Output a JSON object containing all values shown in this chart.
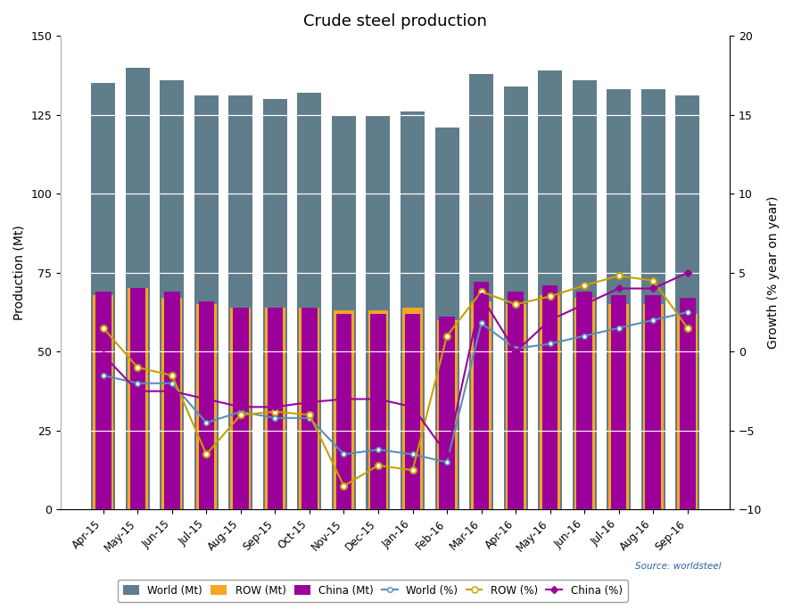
{
  "title": "Crude steel production",
  "categories": [
    "Apr-15",
    "May-15",
    "Jun-15",
    "Jul-15",
    "Aug-15",
    "Sep-15",
    "Oct-15",
    "Nov-15",
    "Dec-15",
    "Jan-16",
    "Feb-16",
    "Mar-16",
    "Apr-16",
    "May-16",
    "Jun-16",
    "Jul-16",
    "Aug-16",
    "Sep-16"
  ],
  "world_mt": [
    135,
    140,
    136,
    131,
    131,
    130,
    132,
    125,
    125,
    126,
    121,
    138,
    134,
    139,
    136,
    133,
    133,
    131
  ],
  "row_mt": [
    68,
    70,
    67,
    65,
    64,
    64,
    64,
    63,
    63,
    64,
    60,
    66,
    65,
    68,
    67,
    65,
    65,
    62
  ],
  "china_mt": [
    69,
    70,
    69,
    66,
    64,
    64,
    64,
    62,
    62,
    62,
    61,
    72,
    69,
    71,
    69,
    68,
    68,
    67
  ],
  "world_pct": [
    -1.5,
    -2.0,
    -2.0,
    -4.5,
    -3.8,
    -4.2,
    -4.2,
    -6.5,
    -6.2,
    -6.5,
    -7.0,
    1.8,
    0.2,
    0.5,
    1.0,
    1.5,
    2.0,
    2.5
  ],
  "row_pct": [
    1.5,
    -1.0,
    -1.5,
    -6.5,
    -4.0,
    -3.8,
    -4.0,
    -8.5,
    -7.2,
    -7.5,
    1.0,
    3.8,
    3.0,
    3.5,
    4.2,
    4.8,
    4.5,
    1.5
  ],
  "china_pct": [
    -0.2,
    -2.5,
    -2.5,
    -3.0,
    -3.5,
    -3.5,
    -3.2,
    -3.0,
    -3.0,
    -3.5,
    -6.5,
    3.5,
    0.0,
    2.0,
    3.0,
    4.0,
    4.0,
    5.0
  ],
  "world_bar_color": "#607d8b",
  "row_bar_color": "#f5a623",
  "china_bar_color": "#9b009b",
  "world_line_color": "#5b8db8",
  "row_line_color": "#c8a000",
  "china_line_color": "#9b009b",
  "ylabel_left": "Production (Mt)",
  "ylabel_right": "Growth (% year on year)",
  "ylim_left": [
    0,
    150
  ],
  "ylim_right": [
    -10,
    20
  ],
  "yticks_left": [
    0,
    25,
    50,
    75,
    100,
    125,
    150
  ],
  "yticks_right": [
    -10,
    -5,
    0,
    5,
    10,
    15,
    20
  ],
  "source": "Source: worldsteel",
  "background_color": "#ffffff",
  "plot_bg_color": "#ffffff",
  "bar_width": 0.7
}
